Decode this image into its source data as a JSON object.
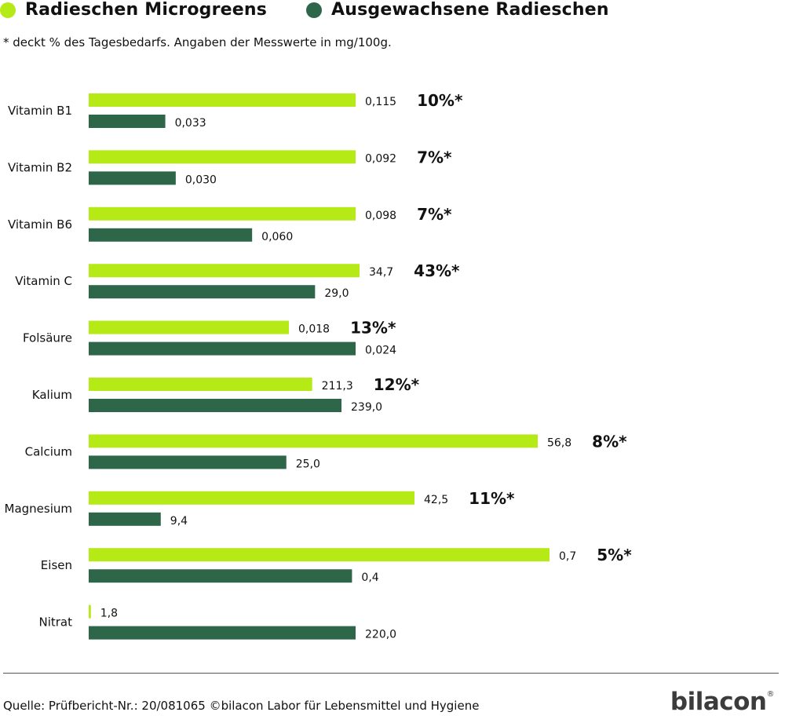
{
  "colors": {
    "micro": "#b5ea17",
    "grown": "#2d6649",
    "text": "#111111"
  },
  "legend": {
    "micro_label": "Radieschen Microgreens",
    "grown_label": "Ausgewachsene Radieschen"
  },
  "note": "* deckt % des Tagesbedarfs. Angaben der Messwerte in mg/100g.",
  "footer": {
    "source": "Quelle: Prüfbericht-Nr.: 20/081065 ©bilacon Labor für Lebensmittel und Hygiene",
    "brand": "bilacon",
    "brand_mark": "®"
  },
  "chart_data": {
    "type": "bar",
    "orientation": "horizontal",
    "categories": [
      "Vitamin B1",
      "Vitamin B2",
      "Vitamin B6",
      "Vitamin C",
      "Folsäure",
      "Kalium",
      "Calcium",
      "Magnesium",
      "Eisen",
      "Nitrat"
    ],
    "series": [
      {
        "name": "Radieschen Microgreens",
        "values": [
          0.115,
          0.092,
          0.098,
          34.7,
          0.018,
          211.3,
          56.8,
          42.5,
          0.7,
          1.8
        ],
        "labels": [
          "0,115",
          "0,092",
          "0,098",
          "34,7",
          "0,018",
          "211,3",
          "56,8",
          "42,5",
          "0,7",
          "1,8"
        ]
      },
      {
        "name": "Ausgewachsene Radieschen",
        "values": [
          0.033,
          0.03,
          0.06,
          29.0,
          0.024,
          239.0,
          25.0,
          9.4,
          0.4,
          220.0
        ],
        "labels": [
          "0,033",
          "0,030",
          "0,060",
          "29,0",
          "0,024",
          "239,0",
          "25,0",
          "9,4",
          "0,4",
          "220,0"
        ]
      }
    ],
    "daily_value_pct": [
      "10%*",
      "7%*",
      "7%*",
      "43%*",
      "13%*",
      "12%*",
      "8%*",
      "11%*",
      "5%*",
      ""
    ],
    "legend_position": "top-left",
    "grid": false
  }
}
